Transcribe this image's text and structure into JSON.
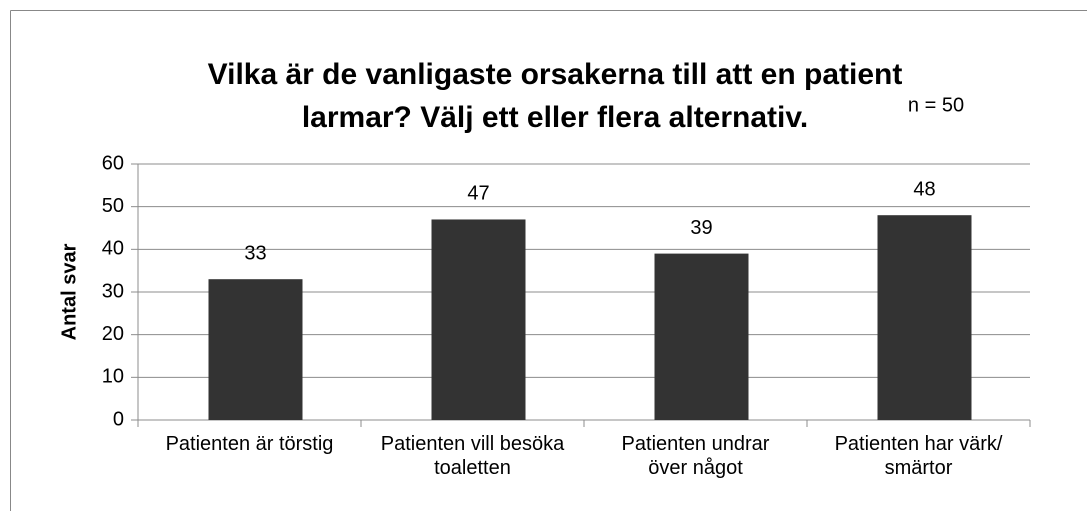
{
  "chart_data": {
    "type": "bar",
    "title": [
      "Vilka är de vanligaste orsakerna till att en patient",
      "larmar? Välj ett eller flera alternativ."
    ],
    "annotation": "n = 50",
    "y_label": "Antal svar",
    "categories": [
      "Patienten är törstig",
      "Patienten vill besöka toaletten",
      "Patienten undrar över något",
      "Patienten har värk/ smärtor"
    ],
    "values": [
      33,
      47,
      39,
      48
    ],
    "color": "#333333",
    "ylim": [
      0,
      60
    ],
    "yticks": [
      0,
      10,
      20,
      30,
      40,
      50,
      60
    ],
    "grid": true
  }
}
